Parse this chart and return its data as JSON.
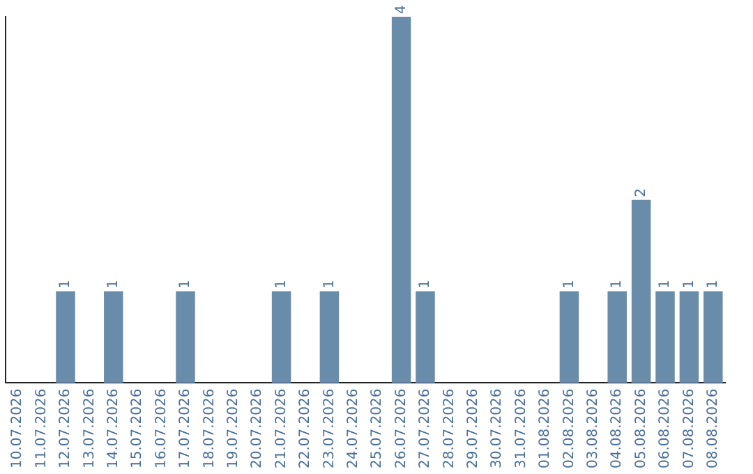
{
  "chart_data": {
    "type": "bar",
    "categories": [
      "10.07.2026",
      "11.07.2026",
      "12.07.2026",
      "13.07.2026",
      "14.07.2026",
      "15.07.2026",
      "16.07.2026",
      "17.07.2026",
      "18.07.2026",
      "19.07.2026",
      "20.07.2026",
      "21.07.2026",
      "22.07.2026",
      "23.07.2026",
      "24.07.2026",
      "25.07.2026",
      "26.07.2026",
      "27.07.2026",
      "28.07.2026",
      "29.07.2026",
      "30.07.2026",
      "31.07.2026",
      "01.08.2026",
      "02.08.2026",
      "03.08.2026",
      "04.08.2026",
      "05.08.2026",
      "06.08.2026",
      "07.08.2026",
      "08.08.2026"
    ],
    "values": [
      0,
      0,
      1,
      0,
      1,
      0,
      0,
      1,
      0,
      0,
      0,
      1,
      0,
      1,
      0,
      0,
      4,
      1,
      0,
      0,
      0,
      0,
      0,
      1,
      0,
      1,
      2,
      1,
      1,
      1
    ],
    "value_labels": [
      null,
      null,
      "1",
      null,
      "1",
      null,
      null,
      "1",
      null,
      null,
      null,
      "1",
      null,
      "1",
      null,
      null,
      "4",
      "1",
      null,
      null,
      null,
      null,
      null,
      "1",
      null,
      "1",
      "2",
      "1",
      "1",
      "1"
    ],
    "color": "#6a8cab",
    "grid": false,
    "legend": false,
    "tick_labels": "x"
  }
}
